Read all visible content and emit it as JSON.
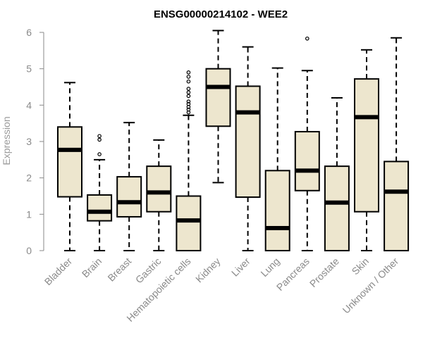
{
  "chart_data": {
    "type": "boxplot",
    "title": "ENSG00000214102 - WEE2",
    "xlabel": "",
    "ylabel": "Expression",
    "ylim": [
      0,
      6
    ],
    "yticks": [
      0,
      1,
      2,
      3,
      4,
      5,
      6
    ],
    "box_fill": "#ede6ce",
    "categories": [
      "Bladder",
      "Brain",
      "Breast",
      "Gastric",
      "Hematopoietic cells",
      "Kidney",
      "Liver",
      "Lung",
      "Pancreas",
      "Prostate",
      "Skin",
      "Unknown / Other"
    ],
    "boxes": [
      {
        "category": "Bladder",
        "whisker_low": 0,
        "q1": 1.48,
        "median": 2.77,
        "q3": 3.4,
        "whisker_high": 4.62,
        "outliers": []
      },
      {
        "category": "Brain",
        "whisker_low": 0,
        "q1": 0.82,
        "median": 1.07,
        "q3": 1.53,
        "whisker_high": 2.5,
        "outliers": [
          2.65,
          3.05,
          3.15
        ]
      },
      {
        "category": "Breast",
        "whisker_low": 0,
        "q1": 0.93,
        "median": 1.33,
        "q3": 2.03,
        "whisker_high": 3.52,
        "outliers": []
      },
      {
        "category": "Gastric",
        "whisker_low": 0,
        "q1": 1.07,
        "median": 1.6,
        "q3": 2.32,
        "whisker_high": 3.04,
        "outliers": []
      },
      {
        "category": "Hematopoietic cells",
        "whisker_low": 0,
        "q1": 0,
        "median": 0.83,
        "q3": 1.5,
        "whisker_high": 3.72,
        "outliers": [
          3.8,
          3.88,
          3.95,
          4.03,
          4.1,
          4.25,
          4.35,
          4.45,
          4.65,
          4.78,
          4.9
        ]
      },
      {
        "category": "Kidney",
        "whisker_low": 1.87,
        "q1": 3.42,
        "median": 4.5,
        "q3": 5.0,
        "whisker_high": 6.05,
        "outliers": []
      },
      {
        "category": "Liver",
        "whisker_low": 0,
        "q1": 1.47,
        "median": 3.8,
        "q3": 4.52,
        "whisker_high": 5.6,
        "outliers": []
      },
      {
        "category": "Lung",
        "whisker_low": 0,
        "q1": 0,
        "median": 0.62,
        "q3": 2.2,
        "whisker_high": 5.02,
        "outliers": []
      },
      {
        "category": "Pancreas",
        "whisker_low": 0,
        "q1": 1.65,
        "median": 2.2,
        "q3": 3.27,
        "whisker_high": 4.95,
        "outliers": [
          5.83
        ]
      },
      {
        "category": "Prostate",
        "whisker_low": 0,
        "q1": 0,
        "median": 1.32,
        "q3": 2.32,
        "whisker_high": 4.2,
        "outliers": []
      },
      {
        "category": "Skin",
        "whisker_low": 0,
        "q1": 1.07,
        "median": 3.67,
        "q3": 4.72,
        "whisker_high": 5.52,
        "outliers": []
      },
      {
        "category": "Unknown / Other",
        "whisker_low": 0,
        "q1": 0,
        "median": 1.62,
        "q3": 2.45,
        "whisker_high": 5.85,
        "outliers": []
      }
    ]
  }
}
